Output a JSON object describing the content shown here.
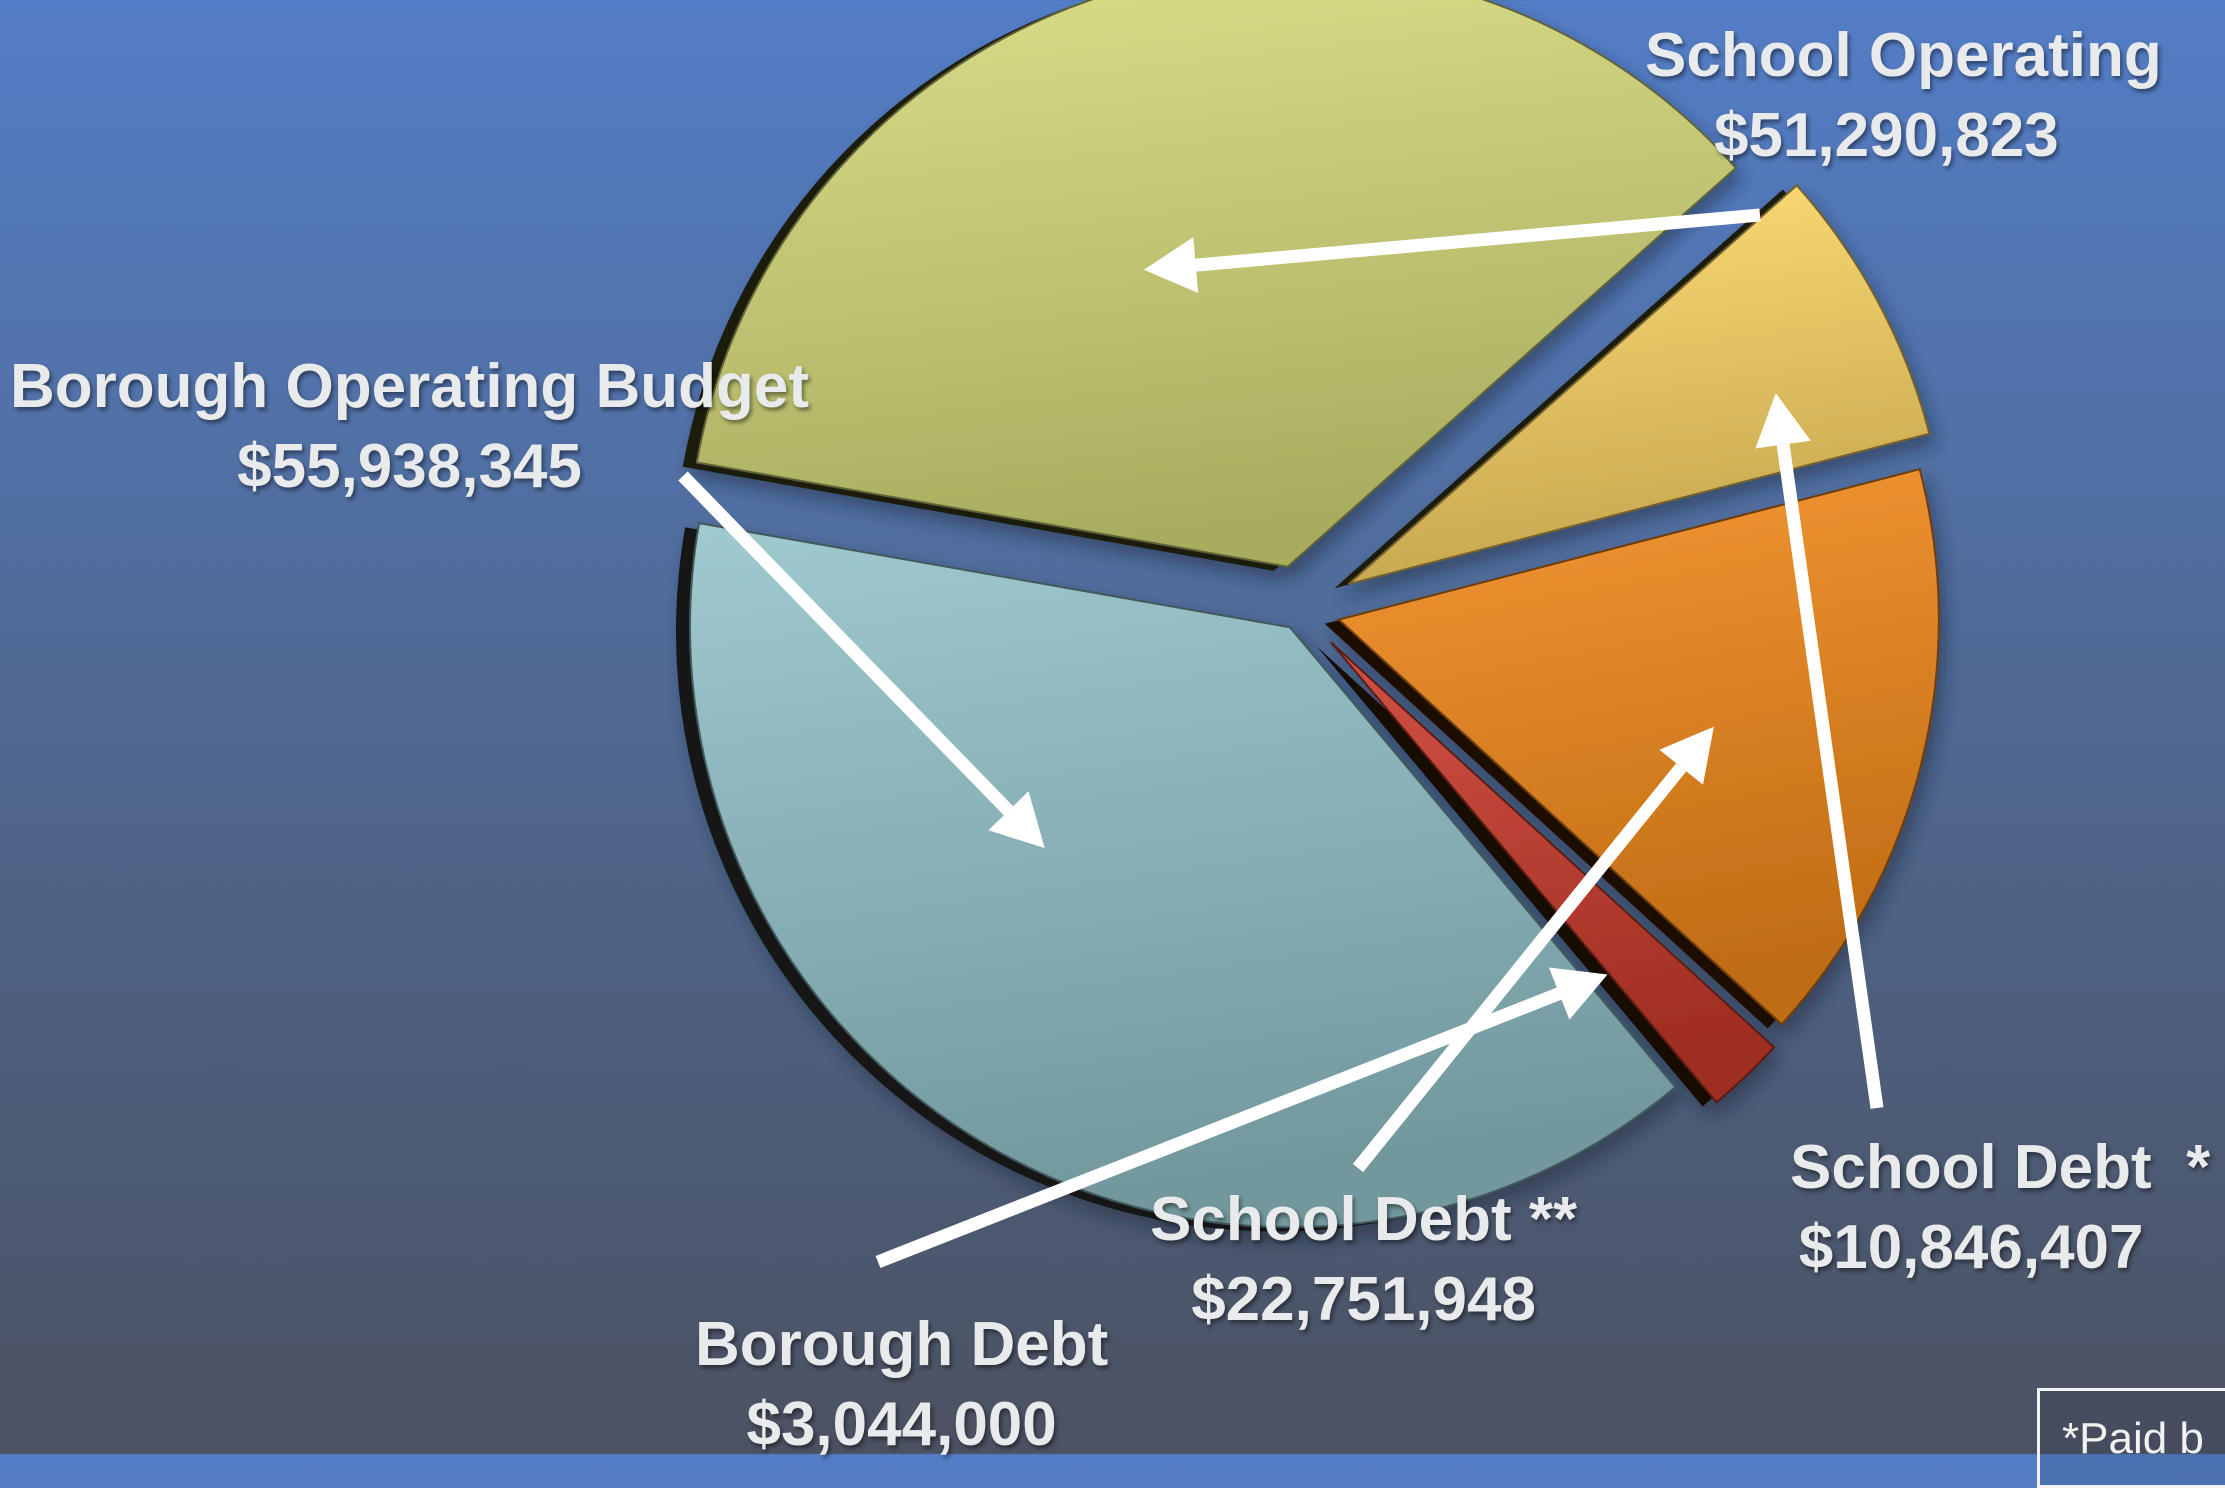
{
  "chart_data": {
    "type": "pie",
    "style": "exploded-3d",
    "slices": [
      {
        "label": "School Operating",
        "value_label": "$51,290,823",
        "value": 51290823,
        "color": "#d7dc7a"
      },
      {
        "label": "School Debt  *",
        "value_label": "$10,846,407",
        "value": 10846407,
        "color": "#ffd865"
      },
      {
        "label": "School Debt **",
        "value_label": "$22,751,948",
        "value": 22751948,
        "color": "#f58a1a"
      },
      {
        "label": "Borough Debt",
        "value_label": "$3,044,000",
        "value": 3044000,
        "color": "#cc3a2c"
      },
      {
        "label": "Borough Operating Budget",
        "value_label": "$55,938,345",
        "value": 55938345,
        "color": "#92c3ca"
      }
    ],
    "footnote": "*Paid b"
  }
}
